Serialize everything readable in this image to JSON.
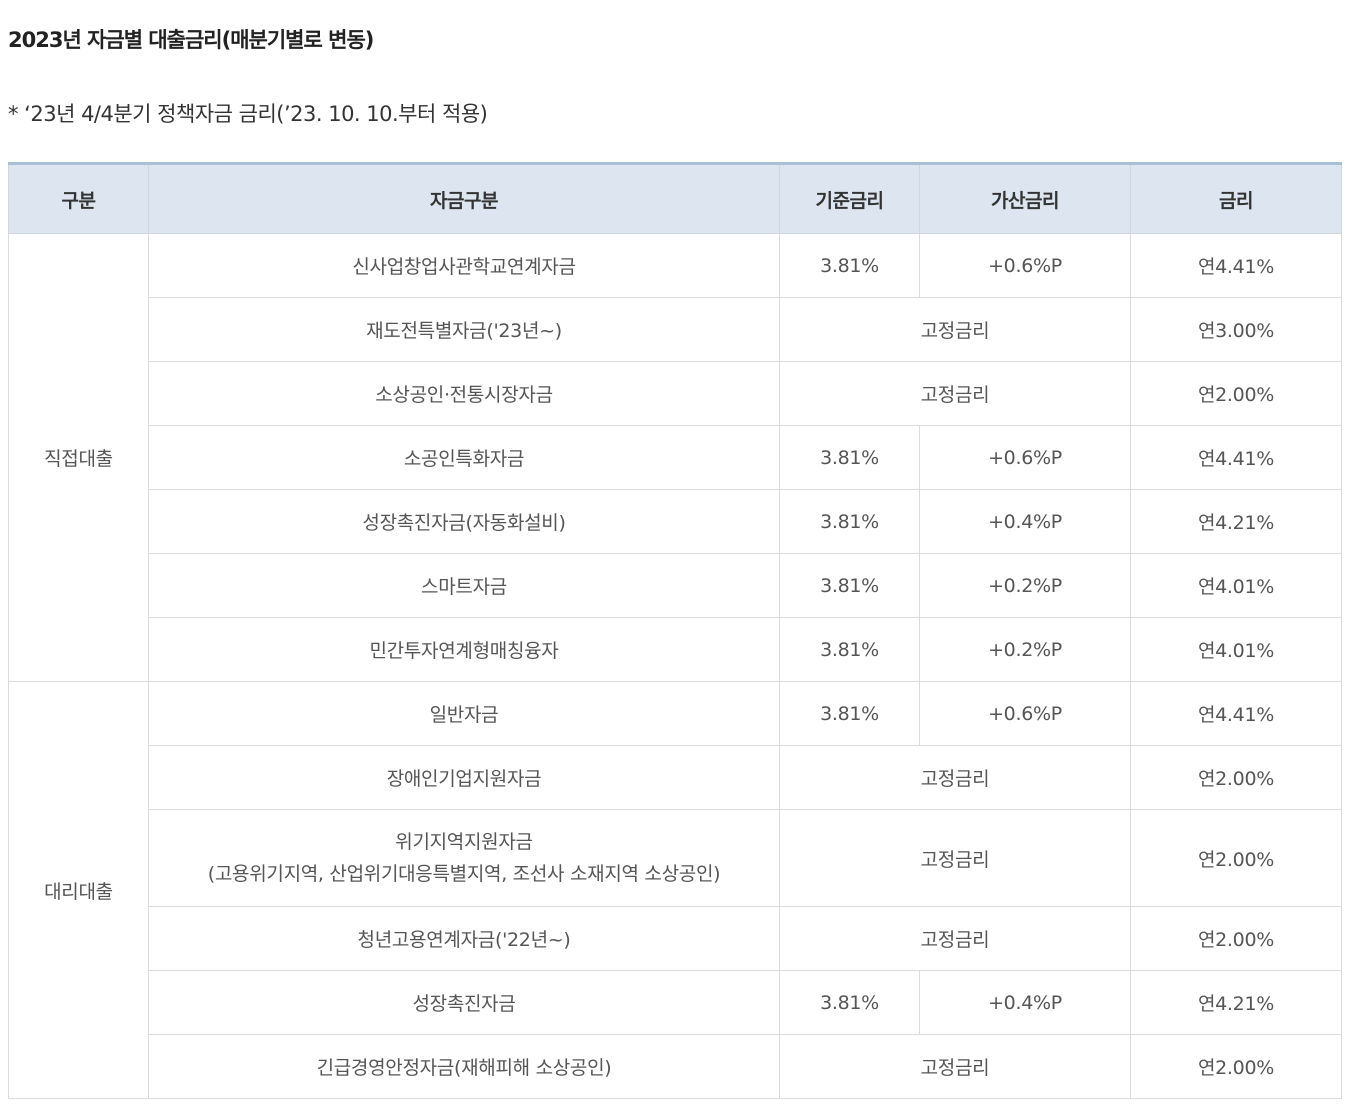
{
  "title": "2023년 자금별 대출금리(매분기별로 변동)",
  "note": "* ‘23년 4/4분기 정책자금 금리(’23. 10. 10.부터 적용)",
  "table": {
    "headers": [
      "구분",
      "자금구분",
      "기준금리",
      "가산금리",
      "금리"
    ],
    "groups": [
      {
        "category": "직접대출",
        "rows": [
          {
            "fund": "신사업창업사관학교연계자금",
            "base": "3.81%",
            "add": "+0.6%P",
            "rate": "연4.41%"
          },
          {
            "fund": "재도전특별자금('23년~)",
            "fixed": "고정금리",
            "rate": "연3.00%"
          },
          {
            "fund": "소상공인·전통시장자금",
            "fixed": "고정금리",
            "rate": "연2.00%"
          },
          {
            "fund": "소공인특화자금",
            "base": "3.81%",
            "add": "+0.6%P",
            "rate": "연4.41%"
          },
          {
            "fund": "성장촉진자금(자동화설비)",
            "base": "3.81%",
            "add": "+0.4%P",
            "rate": "연4.21%"
          },
          {
            "fund": "스마트자금",
            "base": "3.81%",
            "add": "+0.2%P",
            "rate": "연4.01%"
          },
          {
            "fund": "민간투자연계형매칭융자",
            "base": "3.81%",
            "add": "+0.2%P",
            "rate": "연4.01%"
          }
        ]
      },
      {
        "category": "대리대출",
        "rows": [
          {
            "fund": "일반자금",
            "base": "3.81%",
            "add": "+0.6%P",
            "rate": "연4.41%"
          },
          {
            "fund": "장애인기업지원자금",
            "fixed": "고정금리",
            "rate": "연2.00%"
          },
          {
            "fund": "위기지역지원자금",
            "fund_sub": "(고용위기지역, 산업위기대응특별지역, 조선사 소재지역 소상공인)",
            "fixed": "고정금리",
            "rate": "연2.00%"
          },
          {
            "fund": "청년고용연계자금('22년~)",
            "fixed": "고정금리",
            "rate": "연2.00%"
          },
          {
            "fund": "성장촉진자금",
            "base": "3.81%",
            "add": "+0.4%P",
            "rate": "연4.21%"
          },
          {
            "fund": "긴급경영안정자금(재해피해 소상공인)",
            "fixed": "고정금리",
            "rate": "연2.00%"
          }
        ]
      }
    ]
  }
}
